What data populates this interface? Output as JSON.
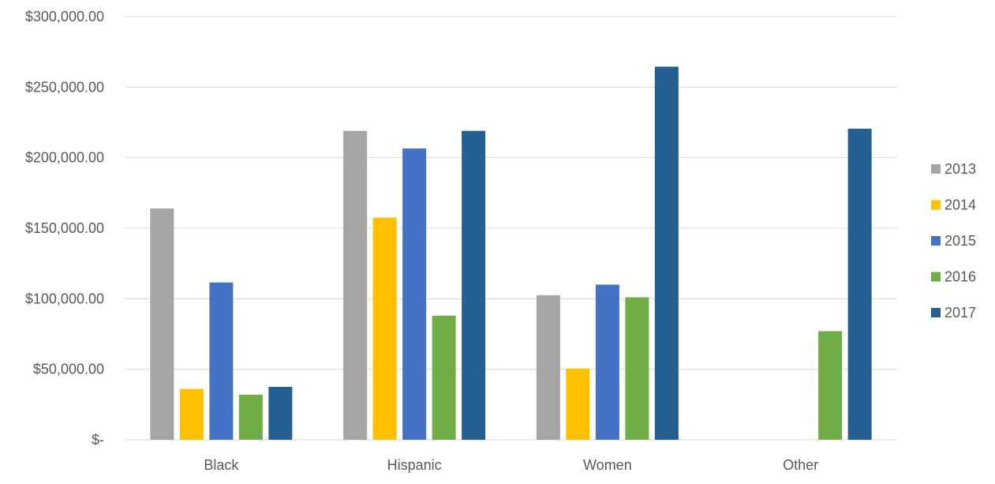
{
  "chart_data": {
    "type": "bar",
    "categories": [
      "Black",
      "Hispanic",
      "Women",
      "Other"
    ],
    "series": [
      {
        "name": "2013",
        "color": "#a5a5a5",
        "values": [
          164000,
          219000,
          102500,
          null
        ]
      },
      {
        "name": "2014",
        "color": "#ffc000",
        "values": [
          36000,
          157500,
          50500,
          null
        ]
      },
      {
        "name": "2015",
        "color": "#4472c4",
        "values": [
          111500,
          206500,
          110000,
          null
        ]
      },
      {
        "name": "2016",
        "color": "#70ad47",
        "values": [
          32000,
          88000,
          101000,
          77000
        ]
      },
      {
        "name": "2017",
        "color": "#255e91",
        "values": [
          37500,
          219000,
          264500,
          220500
        ]
      }
    ],
    "ylim": [
      0,
      300000
    ],
    "yticks": [
      0,
      50000,
      100000,
      150000,
      200000,
      250000,
      300000
    ],
    "ytick_labels": [
      "$-",
      "$50,000.00",
      "$100,000.00",
      "$150,000.00",
      "$200,000.00",
      "$250,000.00",
      "$300,000.00"
    ],
    "grid": true,
    "legend_position": "right",
    "title": "",
    "xlabel": "",
    "ylabel": ""
  }
}
